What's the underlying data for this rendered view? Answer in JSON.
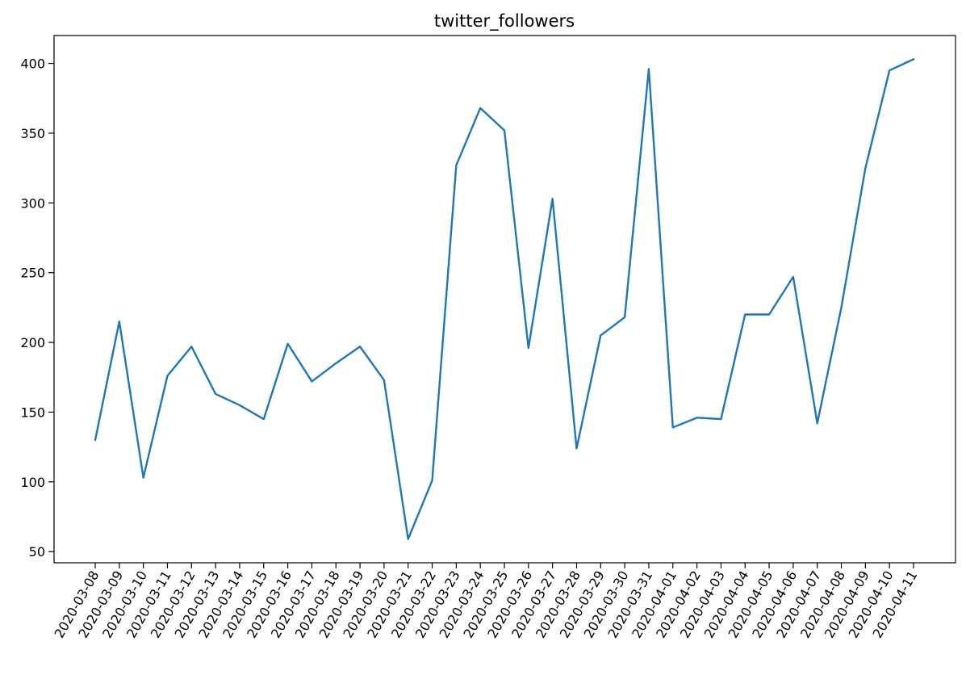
{
  "chart_data": {
    "type": "line",
    "title": "twitter_followers",
    "xlabel": "",
    "ylabel": "",
    "ylim": [
      42,
      420
    ],
    "yticks": [
      50,
      100,
      150,
      200,
      250,
      300,
      350,
      400
    ],
    "grid": false,
    "legend": "none",
    "x": [
      "2020-03-08",
      "2020-03-09",
      "2020-03-10",
      "2020-03-11",
      "2020-03-12",
      "2020-03-13",
      "2020-03-14",
      "2020-03-15",
      "2020-03-16",
      "2020-03-17",
      "2020-03-18",
      "2020-03-19",
      "2020-03-20",
      "2020-03-21",
      "2020-03-22",
      "2020-03-23",
      "2020-03-24",
      "2020-03-25",
      "2020-03-26",
      "2020-03-27",
      "2020-03-28",
      "2020-03-29",
      "2020-03-30",
      "2020-03-31",
      "2020-04-01",
      "2020-04-02",
      "2020-04-03",
      "2020-04-04",
      "2020-04-05",
      "2020-04-06",
      "2020-04-07",
      "2020-04-08",
      "2020-04-09",
      "2020-04-10",
      "2020-04-11"
    ],
    "series": [
      {
        "color": "#1f77b4",
        "values": [
          130,
          215,
          103,
          176,
          197,
          163,
          155,
          145,
          199,
          172,
          185,
          197,
          173,
          59,
          101,
          327,
          368,
          352,
          196,
          303,
          124,
          205,
          218,
          396,
          139,
          146,
          145,
          220,
          220,
          247,
          142,
          225,
          325,
          395,
          403
        ]
      }
    ]
  }
}
